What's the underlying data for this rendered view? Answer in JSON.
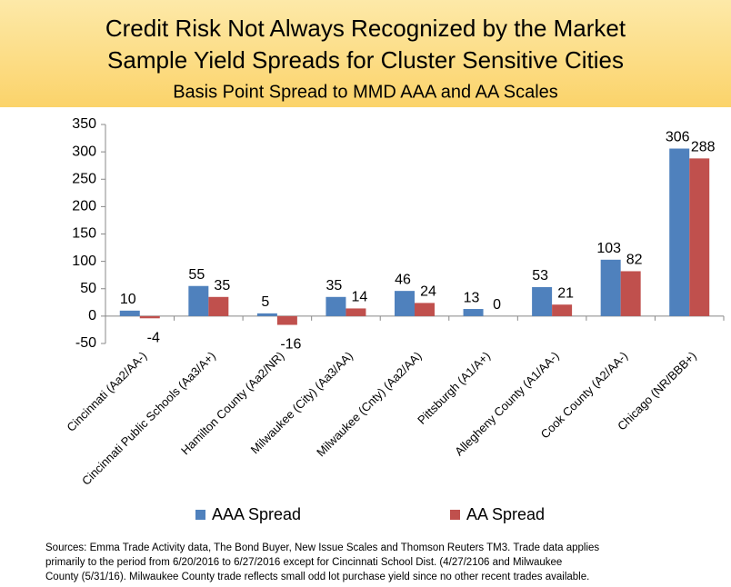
{
  "chart_data": {
    "type": "bar",
    "title": [
      "Credit Risk Not Always Recognized by the Market",
      "Sample Yield Spreads for Cluster Sensitive Cities"
    ],
    "subtitle": "Basis Point Spread to MMD AAA and AA Scales",
    "categories": [
      "Cincinnati (Aa2/AA-)",
      "Cincinnati Public Schools (Aa3/A+)",
      "Hamilton County (Aa2/NR)",
      "Milwaukee (City) (Aa3/AA)",
      "Milwaukee (Cnty) (Aa2/AA)",
      "Pittsburgh (A1/A+)",
      "Allegheny County (A1/AA-)",
      "Cook County (A2/AA-)",
      "Chicago (NR/BBB+)"
    ],
    "series": [
      {
        "name": "AAA Spread",
        "color": "#4f81bd",
        "values": [
          10,
          55,
          5,
          35,
          46,
          13,
          53,
          103,
          306
        ]
      },
      {
        "name": "AA Spread",
        "color": "#c0504d",
        "values": [
          -4,
          35,
          -16,
          14,
          24,
          0,
          21,
          82,
          288
        ]
      }
    ],
    "ylim": [
      -50,
      350
    ],
    "yticks": [
      -50,
      0,
      50,
      100,
      150,
      200,
      250,
      300,
      350
    ],
    "grid": false,
    "legend": "bottom",
    "source": [
      "Sources:  Emma Trade Activity data, The Bond Buyer,  New Issue Scales and Thomson Reuters TM3.  Trade data applies",
      "primarily to the period from 6/20/2016 to 6/27/2016 except for Cincinnati School Dist. (4/27/2106 and Milwaukee",
      "County (5/31/16).  Milwaukee County trade reflects small odd lot purchase yield since no other recent trades available."
    ]
  }
}
